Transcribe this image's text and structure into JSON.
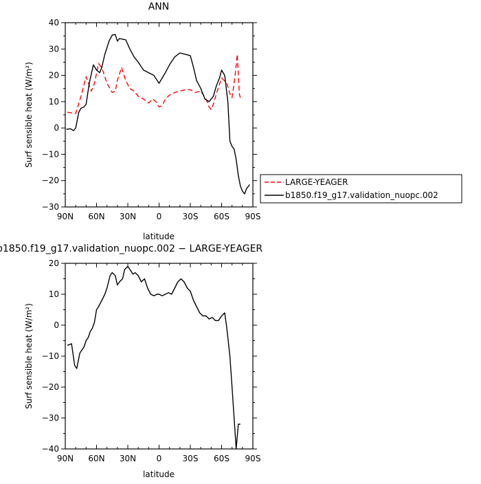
{
  "chart_data": [
    {
      "type": "line",
      "title": "ANN",
      "xlabel": "latitude",
      "ylabel": "Surf sensible heat (W/m²)",
      "xlim": [
        90,
        -90
      ],
      "ylim": [
        -30,
        40
      ],
      "x_tick_labels": [
        "90N",
        "60N",
        "30N",
        "0",
        "30S",
        "60S",
        "90S"
      ],
      "y_tick_labels": [
        "−30",
        "−20",
        "−10",
        "0",
        "10",
        "20",
        "30",
        "40"
      ],
      "legend": "right, outside the plot",
      "series": [
        {
          "name": "LARGE-YEAGER",
          "color": "#ff0000",
          "style": "dashed",
          "x": [
            88,
            80,
            75,
            70,
            65,
            62,
            58,
            55,
            50,
            45,
            42,
            40,
            36,
            32,
            28,
            24,
            20,
            15,
            12,
            10,
            6,
            3,
            0,
            -3,
            -6,
            -10,
            -15,
            -20,
            -25,
            -30,
            -35,
            -40,
            -45,
            -48,
            -50,
            -52,
            -55,
            -60,
            -65,
            -68,
            -70,
            -73,
            -75,
            -77,
            -78
          ],
          "y": [
            6,
            5.5,
            12,
            19.5,
            14,
            17,
            24.5,
            23,
            17,
            13.5,
            14,
            18,
            23,
            18,
            15,
            14,
            12,
            11,
            10,
            9.5,
            11,
            10,
            8,
            8.5,
            11,
            12.5,
            13.5,
            14,
            14.5,
            14.5,
            13.5,
            14,
            11,
            8,
            7,
            9,
            13,
            19,
            17,
            13,
            11.5,
            20,
            28,
            13,
            11.5
          ]
        },
        {
          "name": "b1850.f19_g17.validation_nuopc.002",
          "color": "#000000",
          "style": "solid",
          "x": [
            89,
            85,
            82,
            80,
            77,
            75,
            72,
            70,
            67,
            63,
            60,
            57,
            55,
            52,
            48,
            45,
            42,
            40,
            38,
            36,
            32,
            28,
            24,
            20,
            15,
            10,
            5,
            0,
            -3,
            -6,
            -10,
            -15,
            -20,
            -25,
            -30,
            -33,
            -36,
            -40,
            -44,
            -48,
            -52,
            -55,
            -58,
            -60,
            -63,
            -66,
            -68,
            -70,
            -72,
            -74,
            -76,
            -78,
            -80,
            -82,
            -84,
            -87
          ],
          "y": [
            -0.5,
            -0.3,
            -1,
            0,
            6,
            7.5,
            8,
            9,
            17,
            24,
            22,
            21,
            23,
            28,
            33,
            35.3,
            35.5,
            33,
            34,
            33.8,
            33.5,
            30,
            27,
            25,
            22,
            21,
            20,
            17,
            19,
            21,
            24,
            27,
            28.5,
            28,
            27.5,
            23,
            18,
            15,
            11,
            10,
            12,
            16,
            19,
            22,
            20,
            10,
            -5,
            -7,
            -8,
            -12,
            -18,
            -22,
            -24,
            -25,
            -23,
            -21.5
          ]
        }
      ]
    },
    {
      "type": "line",
      "title": "b1850.f19_g17.validation_nuopc.002 − LARGE-YEAGER",
      "xlabel": "latitude",
      "ylabel": "Surf sensible heat (W/m²)",
      "xlim": [
        90,
        -90
      ],
      "ylim": [
        -40,
        20
      ],
      "x_tick_labels": [
        "90N",
        "60N",
        "30N",
        "0",
        "30S",
        "60S",
        "90S"
      ],
      "y_tick_labels": [
        "−40",
        "−30",
        "−20",
        "−10",
        "0",
        "10",
        "20"
      ],
      "series": [
        {
          "color": "#000000",
          "style": "solid",
          "x": [
            88,
            84,
            81,
            79,
            76,
            74,
            72,
            70,
            68,
            66,
            64,
            62,
            60,
            58,
            55,
            52,
            50,
            47,
            45,
            42,
            40,
            38,
            35,
            33,
            30,
            28,
            25,
            23,
            20,
            17,
            14,
            11,
            8,
            5,
            2,
            0,
            -3,
            -6,
            -9,
            -12,
            -15,
            -18,
            -21,
            -24,
            -27,
            -30,
            -33,
            -36,
            -39,
            -42,
            -45,
            -48,
            -51,
            -54,
            -57,
            -60,
            -63,
            -65,
            -68,
            -70,
            -72,
            -74,
            -76,
            -78
          ],
          "y": [
            -6.5,
            -6,
            -13,
            -14,
            -9,
            -8,
            -7,
            -5,
            -4,
            -2,
            -1,
            1,
            5,
            6,
            8,
            10,
            12,
            16,
            17,
            16,
            13,
            14,
            15,
            18,
            19,
            18,
            16.5,
            17,
            16,
            14,
            15,
            12,
            10,
            9.5,
            10,
            10,
            9.5,
            10,
            10.5,
            10,
            12,
            14,
            15,
            14,
            12,
            11,
            8,
            6,
            4,
            3,
            3,
            2,
            2.5,
            1.5,
            1.5,
            3,
            4,
            -1,
            -10,
            -20,
            -30,
            -40,
            -32,
            -32
          ]
        }
      ]
    }
  ]
}
